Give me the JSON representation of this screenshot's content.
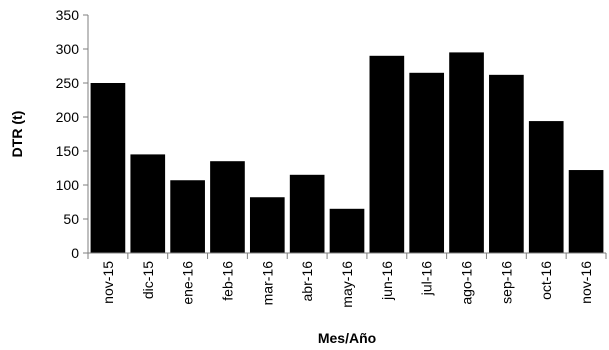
{
  "chart_data": {
    "type": "bar",
    "categories": [
      "nov-15",
      "dic-15",
      "ene-16",
      "feb-16",
      "mar-16",
      "abr-16",
      "may-16",
      "jun-16",
      "jul-16",
      "ago-16",
      "sep-16",
      "oct-16",
      "nov-16"
    ],
    "values": [
      250,
      145,
      107,
      135,
      82,
      115,
      65,
      290,
      265,
      295,
      262,
      194,
      122
    ],
    "xlabel": "Mes/Año",
    "ylabel": "DTR (t)",
    "ylim": [
      0,
      350
    ],
    "yticks": [
      "0",
      "50",
      "100",
      "150",
      "200",
      "250",
      "300",
      "350"
    ],
    "grid": false,
    "legend": "none",
    "bar_color": "#000000",
    "axis_color": "#7f7f7f"
  }
}
